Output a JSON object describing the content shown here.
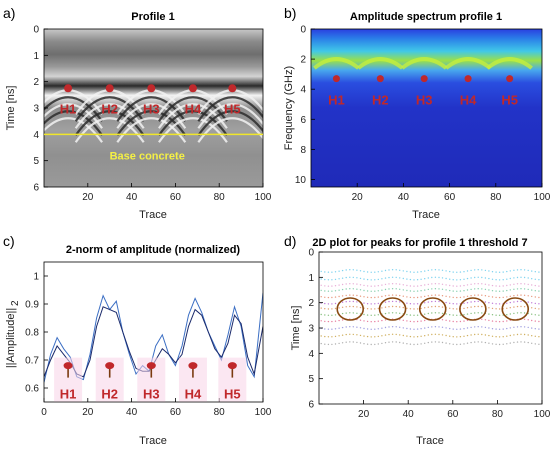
{
  "chart_data": [
    {
      "id": "a",
      "panel_letter": "a)",
      "type": "heatmap",
      "title": "Profile 1",
      "xlabel": "Trace",
      "ylabel": "Time [ns]",
      "xlim": [
        0,
        100
      ],
      "ylim": [
        0,
        6
      ],
      "y_inverted": true,
      "xticks": [
        20,
        40,
        60,
        80,
        100
      ],
      "yticks": [
        0,
        1,
        2,
        3,
        4,
        5,
        6
      ],
      "colormap": "gray",
      "hyperbola_peaks": [
        {
          "label": "H1",
          "trace": 11,
          "time": 2.25
        },
        {
          "label": "H2",
          "trace": 30,
          "time": 2.25
        },
        {
          "label": "H3",
          "trace": 49,
          "time": 2.25
        },
        {
          "label": "H4",
          "trace": 68,
          "time": 2.25
        },
        {
          "label": "H5",
          "trace": 86,
          "time": 2.25
        }
      ],
      "reference_line": {
        "time": 4.0,
        "color": "#f0e62a"
      },
      "annotation": {
        "text": "Base concrete",
        "trace": 38,
        "time": 4.8
      }
    },
    {
      "id": "b",
      "panel_letter": "b)",
      "type": "heatmap",
      "title": "Amplitude spectrum profile 1",
      "xlabel": "Trace",
      "ylabel": "Frequency (GHz)",
      "xlim": [
        0,
        100
      ],
      "ylim": [
        0,
        10.5
      ],
      "y_inverted": true,
      "xticks": [
        20,
        40,
        60,
        80,
        100
      ],
      "yticks": [
        0,
        2,
        4,
        6,
        8,
        10
      ],
      "colormap": "jet",
      "markers": [
        {
          "label": "H1",
          "trace": 11,
          "freq": 3.3
        },
        {
          "label": "H2",
          "trace": 30,
          "freq": 3.3
        },
        {
          "label": "H3",
          "trace": 49,
          "freq": 3.3
        },
        {
          "label": "H4",
          "trace": 68,
          "freq": 3.3
        },
        {
          "label": "H5",
          "trace": 86,
          "freq": 3.3
        }
      ]
    },
    {
      "id": "c",
      "panel_letter": "c)",
      "type": "line",
      "title": "2-norm of amplitude (normalized)",
      "xlabel": "Trace",
      "ylabel": "||Amplitude||",
      "ylabel_sub": "2",
      "xlim": [
        0,
        100
      ],
      "ylim": [
        0.55,
        1.05
      ],
      "xticks": [
        0,
        20,
        40,
        60,
        80,
        100
      ],
      "yticks": [
        0.6,
        0.7,
        0.8,
        0.9,
        1
      ],
      "x": [
        0,
        3,
        6,
        9,
        12,
        15,
        18,
        21,
        24,
        27,
        30,
        33,
        36,
        39,
        42,
        45,
        48,
        51,
        54,
        57,
        60,
        63,
        66,
        69,
        72,
        75,
        78,
        81,
        84,
        87,
        90,
        93,
        96,
        100
      ],
      "series": [
        {
          "color": "#3c6fc4",
          "values": [
            0.62,
            0.72,
            0.78,
            0.74,
            0.71,
            0.64,
            0.63,
            0.72,
            0.85,
            0.93,
            0.88,
            0.91,
            0.8,
            0.72,
            0.65,
            0.68,
            0.66,
            0.75,
            0.79,
            0.72,
            0.68,
            0.75,
            0.86,
            0.92,
            0.87,
            0.8,
            0.75,
            0.7,
            0.79,
            0.89,
            0.82,
            0.68,
            0.64,
            0.94
          ]
        },
        {
          "color": "#1b2a6b",
          "values": [
            0.64,
            0.7,
            0.75,
            0.72,
            0.69,
            0.65,
            0.64,
            0.7,
            0.82,
            0.89,
            0.88,
            0.87,
            0.8,
            0.73,
            0.67,
            0.66,
            0.66,
            0.7,
            0.74,
            0.72,
            0.69,
            0.72,
            0.82,
            0.88,
            0.86,
            0.8,
            0.74,
            0.71,
            0.76,
            0.86,
            0.83,
            0.71,
            0.65,
            0.82
          ]
        }
      ],
      "markers": [
        {
          "label": "H1",
          "trace": 11,
          "value": 0.68
        },
        {
          "label": "H2",
          "trace": 30,
          "value": 0.68
        },
        {
          "label": "H3",
          "trace": 49,
          "value": 0.68
        },
        {
          "label": "H4",
          "trace": 68,
          "value": 0.68
        },
        {
          "label": "H5",
          "trace": 86,
          "value": 0.68
        }
      ]
    },
    {
      "id": "d",
      "panel_letter": "d)",
      "type": "scatter",
      "title": "2D plot for peaks for profile 1 threshold 7",
      "xlabel": "Trace",
      "ylabel": "Time [ns]",
      "xlim": [
        0,
        100
      ],
      "ylim": [
        0,
        6
      ],
      "y_inverted": true,
      "xticks": [
        20,
        40,
        60,
        80,
        100
      ],
      "yticks": [
        0,
        1,
        2,
        3,
        4,
        5,
        6
      ],
      "circles": [
        {
          "trace": 14,
          "time": 2.25
        },
        {
          "trace": 33,
          "time": 2.25
        },
        {
          "trace": 51,
          "time": 2.25
        },
        {
          "trace": 69,
          "time": 2.25
        },
        {
          "trace": 88,
          "time": 2.25
        }
      ]
    }
  ],
  "colors": {
    "hyperbola_marker": "#c0282b",
    "circle_outline": "#8a4a12",
    "label_red": "#c0282b"
  }
}
